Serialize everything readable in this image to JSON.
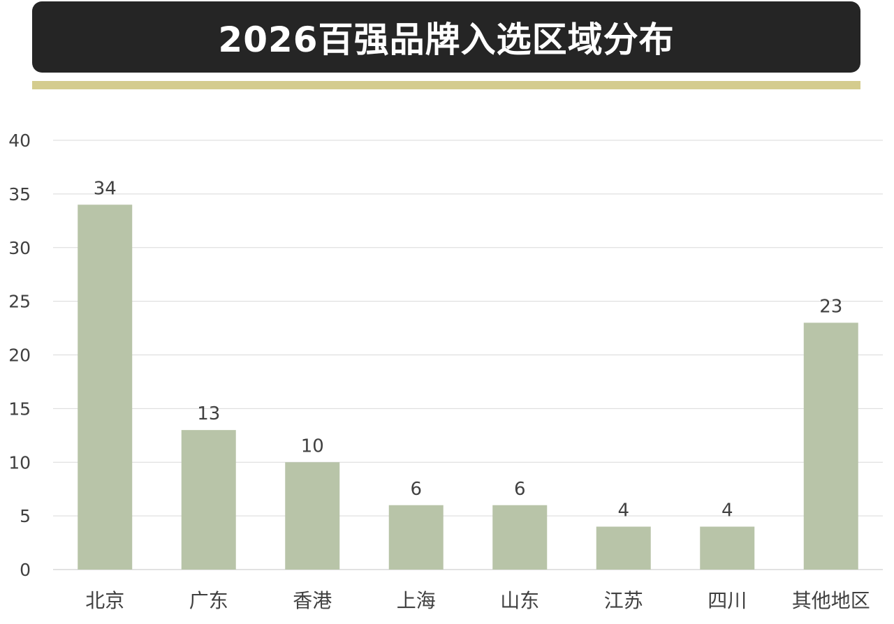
{
  "colors": {
    "title_bg": "#252525",
    "title_text": "#ffffff",
    "accent": "#d4cc8e",
    "bar": "#b8c4a8",
    "grid": "#d9d9d9",
    "text": "#404040"
  },
  "chart_data": {
    "type": "bar",
    "title": "2026百强品牌入选区域分布",
    "categories": [
      "北京",
      "广东",
      "香港",
      "上海",
      "山东",
      "江苏",
      "四川",
      "其他地区"
    ],
    "values": [
      34,
      13,
      10,
      6,
      6,
      4,
      4,
      23
    ],
    "ylim": [
      0,
      40
    ],
    "yticks": [
      0,
      5,
      10,
      15,
      20,
      25,
      30,
      35,
      40
    ],
    "grid": true,
    "legend": "none",
    "xlabel": "",
    "ylabel": ""
  }
}
